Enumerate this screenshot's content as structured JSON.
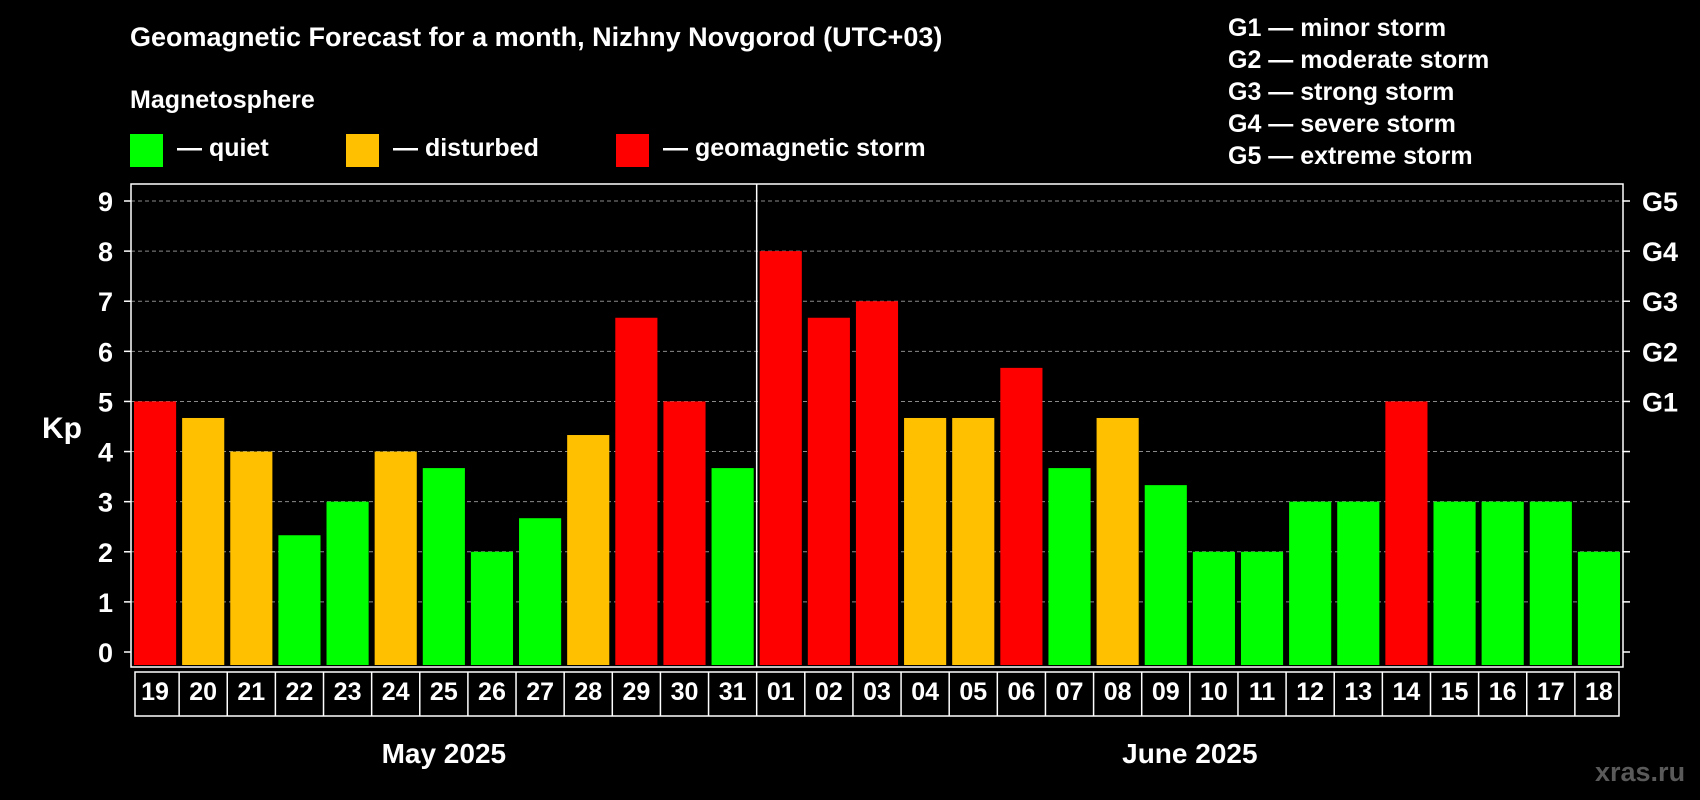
{
  "chart_data": {
    "type": "bar",
    "title": "Geomagnetic Forecast for a month, Nizhny Novgorod (UTC+03)",
    "ylabel": "Kp",
    "ylim": [
      0,
      9
    ],
    "yticks": [
      "0",
      "1",
      "2",
      "3",
      "4",
      "5",
      "6",
      "7",
      "8",
      "9"
    ],
    "right_axis": [
      {
        "label": "G1",
        "value": 5
      },
      {
        "label": "G2",
        "value": 6
      },
      {
        "label": "G3",
        "value": 7
      },
      {
        "label": "G4",
        "value": 8
      },
      {
        "label": "G5",
        "value": 9
      }
    ],
    "grid": true,
    "categories": [
      "19",
      "20",
      "21",
      "22",
      "23",
      "24",
      "25",
      "26",
      "27",
      "28",
      "29",
      "30",
      "31",
      "01",
      "02",
      "03",
      "04",
      "05",
      "06",
      "07",
      "08",
      "09",
      "10",
      "11",
      "12",
      "13",
      "14",
      "15",
      "16",
      "17",
      "18"
    ],
    "values": [
      5,
      4.67,
      4,
      2.33,
      3,
      4,
      3.67,
      2,
      2.67,
      4.33,
      6.67,
      5,
      3.67,
      8,
      6.67,
      7,
      4.67,
      4.67,
      5.67,
      3.67,
      4.67,
      3.33,
      2,
      2,
      3,
      3,
      5,
      3,
      3,
      3,
      2
    ],
    "status": [
      "storm",
      "disturbed",
      "disturbed",
      "quiet",
      "quiet",
      "disturbed",
      "quiet",
      "quiet",
      "quiet",
      "disturbed",
      "storm",
      "storm",
      "quiet",
      "storm",
      "storm",
      "storm",
      "disturbed",
      "disturbed",
      "storm",
      "quiet",
      "disturbed",
      "quiet",
      "quiet",
      "quiet",
      "quiet",
      "quiet",
      "storm",
      "quiet",
      "quiet",
      "quiet",
      "quiet"
    ],
    "months": [
      {
        "label": "May 2025",
        "start": 0,
        "count": 13
      },
      {
        "label": "June 2025",
        "start": 13,
        "count": 18
      }
    ],
    "legend_title": "Magnetosphere",
    "legend": [
      {
        "key": "quiet",
        "label": "— quiet",
        "color": "#00ff00"
      },
      {
        "key": "disturbed",
        "label": "— disturbed",
        "color": "#ffc000"
      },
      {
        "key": "storm",
        "label": "— geomagnetic storm",
        "color": "#ff0000"
      }
    ],
    "g_scale": [
      "G1 — minor storm",
      "G2 — moderate storm",
      "G3 — strong storm",
      "G4 — severe storm",
      "G5 — extreme storm"
    ]
  },
  "watermark": "xras.ru"
}
